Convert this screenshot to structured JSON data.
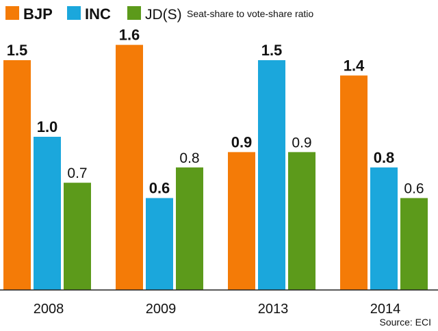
{
  "chart_data": {
    "type": "bar",
    "title": "Seat-share to vote-share ratio",
    "categories": [
      "2008",
      "2009",
      "2013",
      "2014"
    ],
    "series": [
      {
        "name": "BJP",
        "color": "#f47b07",
        "values": [
          1.5,
          1.6,
          0.9,
          1.4
        ],
        "labels": [
          "1.5",
          "1.6",
          "0.9",
          "1.4"
        ]
      },
      {
        "name": "INC",
        "color": "#1ba7dc",
        "values": [
          1.0,
          0.6,
          1.5,
          0.8
        ],
        "labels": [
          "1.0",
          "0.6",
          "1.5",
          "0.8"
        ]
      },
      {
        "name": "JD(S)",
        "color": "#5c9a1b",
        "values": [
          0.7,
          0.8,
          0.9,
          0.6
        ],
        "labels": [
          "0.7",
          "0.8",
          "0.9",
          "0.6"
        ]
      }
    ],
    "ylim": [
      0,
      1.6
    ],
    "grid": false,
    "legend_position": "top-left",
    "source": "Source: ECI"
  }
}
